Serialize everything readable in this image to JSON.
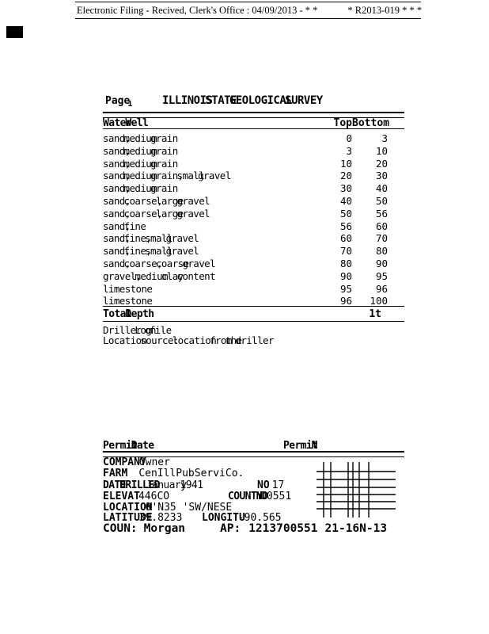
{
  "colors": {
    "ink": "#000000",
    "paper": "#ffffff"
  },
  "header": {
    "filing_text": "Electronic Filing - Recived, Clerk's Office : 04/09/2013 - * *",
    "filing_ref": "* R2013-019 * * *"
  },
  "page": {
    "page_label": "Page",
    "page_number": "1",
    "title": "ILLINOIS STATE GEOLOGICAL SURVEY"
  },
  "log_table": {
    "section_label": "Water Well",
    "col_top": "Top",
    "col_bottom": "Bottom",
    "rows": [
      {
        "material": "sand, medium grain",
        "top": "0",
        "bottom": "3"
      },
      {
        "material": "sand, medium grain",
        "top": "3",
        "bottom": "10"
      },
      {
        "material": "sand, medium grain",
        "top": "10",
        "bottom": "20"
      },
      {
        "material": "sand, medium grain, small gravel",
        "top": "20",
        "bottom": "30"
      },
      {
        "material": "sand, medium grain",
        "top": "30",
        "bottom": "40"
      },
      {
        "material": "sand, coarse, large gravel",
        "top": "40",
        "bottom": "50"
      },
      {
        "material": "sand, coarse, large gravel",
        "top": "50",
        "bottom": "56"
      },
      {
        "material": "sand, fine",
        "top": "56",
        "bottom": "60"
      },
      {
        "material": "sand, fine, small gravel",
        "top": "60",
        "bottom": "70"
      },
      {
        "material": "sand, fine, small gravel",
        "top": "70",
        "bottom": "80"
      },
      {
        "material": "sand, coarse, coarse gravel",
        "top": "80",
        "bottom": "90"
      },
      {
        "material": "gravel, medium clay content",
        "top": "90",
        "bottom": "95"
      },
      {
        "material": "limestone",
        "top": "95",
        "bottom": "96"
      },
      {
        "material": "limestone",
        "top": "96",
        "bottom": "100"
      }
    ],
    "total_label": "Total Depth",
    "total_value": "1t"
  },
  "notes": {
    "line1": "Driller Log on file",
    "line2": "Location source: location from the driller"
  },
  "permit": {
    "permit_date_label": "Permit Date",
    "permit_no_label": "Permit N",
    "company_label": "COMPANY",
    "company_value": "Owner",
    "farm_label": "FARM",
    "farm_value": "CenIllPubServiCo.",
    "date_drilled_label": "DATE DRILLED",
    "date_drilled_value": "January 1941",
    "no_label": "NO",
    "no_value": "17",
    "elevation_label": "ELEVAT",
    "elevation_value": "446CO",
    "county_no_label": "COUNTY NO",
    "county_no_value": "00551",
    "location_label": "LOCATION",
    "location_value": "0'N35 'SW/NESE",
    "latitude_label": "LATITUDE",
    "latitude_value": "39.8233",
    "longitude_label": "LONGITU",
    "longitude_value": "-90.565",
    "county_label": "COUN:",
    "county_value": "Morgan",
    "api_label": "AP:",
    "api_value": "1213700551",
    "section_township_range": "21-16N-13"
  }
}
